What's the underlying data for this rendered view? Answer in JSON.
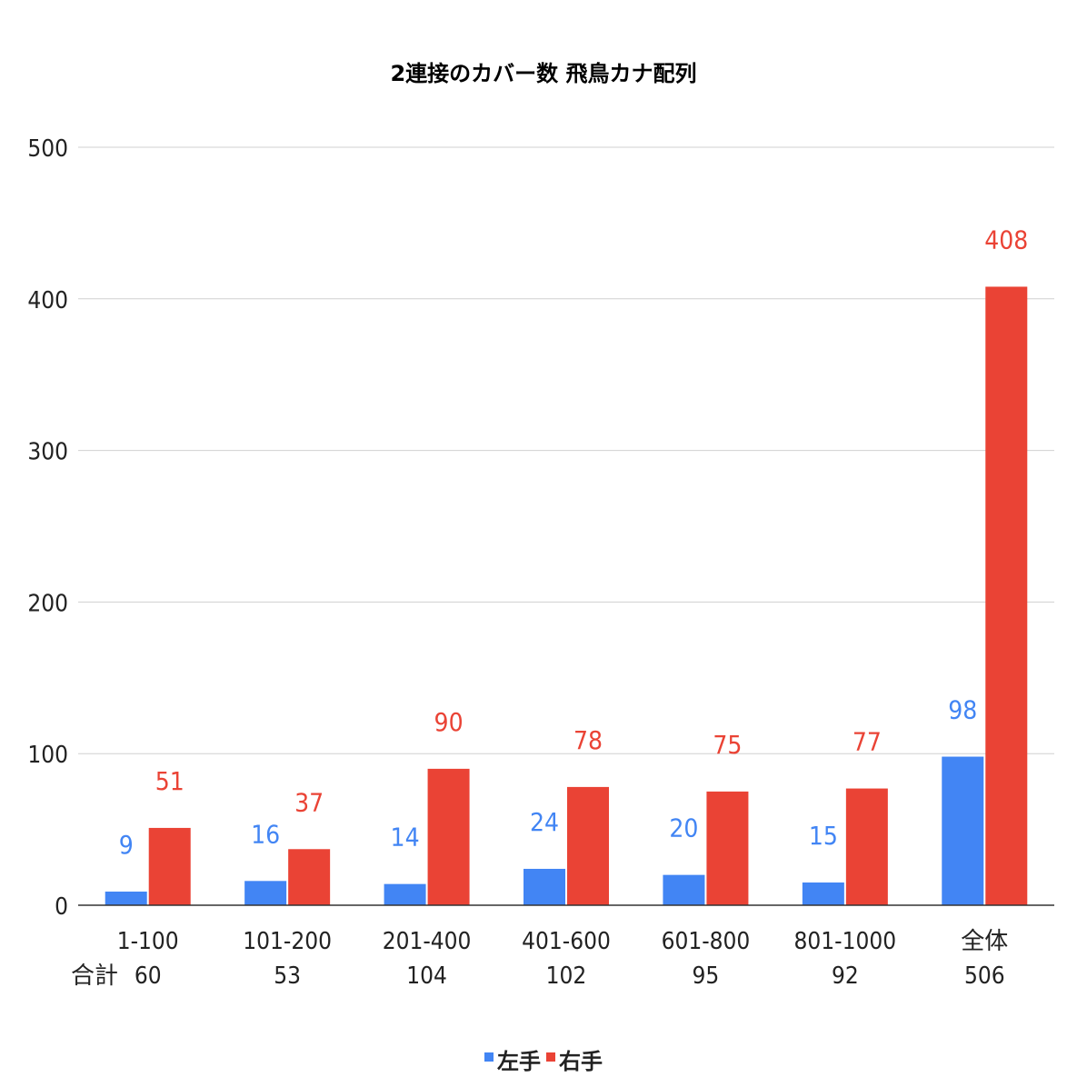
{
  "chart_data": {
    "type": "bar",
    "title": "2連接のカバー数 飛鳥カナ配列",
    "categories": [
      "1-100",
      "101-200",
      "201-400",
      "401-600",
      "601-800",
      "801-1000",
      "全体"
    ],
    "totals_label": "合計",
    "totals": [
      "60",
      "53",
      "104",
      "102",
      "95",
      "92",
      "506"
    ],
    "series": [
      {
        "name": "左手",
        "color": "#4285f4",
        "values": [
          9,
          16,
          14,
          24,
          20,
          15,
          98
        ]
      },
      {
        "name": "右手",
        "color": "#ea4335",
        "values": [
          51,
          37,
          90,
          78,
          75,
          77,
          408
        ]
      }
    ],
    "yticks": [
      0,
      100,
      200,
      300,
      400,
      500
    ],
    "ylim": [
      0,
      500
    ],
    "grid": true,
    "legend_position": "bottom"
  }
}
